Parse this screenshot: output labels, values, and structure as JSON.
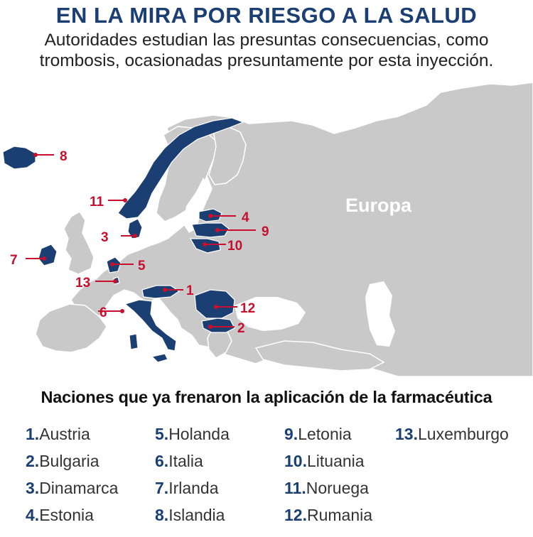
{
  "header": {
    "title": "EN LA MIRA POR RIESGO A LA SALUD",
    "subtitle_line1": "Autoridades estudian las presuntas consecuencias, como",
    "subtitle_line2": "trombosis, ocasionadas presuntamente por esta inyección."
  },
  "map": {
    "region_label": "Europa",
    "colors": {
      "highlight": "#1b3f73",
      "land": "#c9c9c9",
      "border": "#ffffff",
      "marker": "#c8102e"
    },
    "markers": [
      {
        "num": "1"
      },
      {
        "num": "2"
      },
      {
        "num": "3"
      },
      {
        "num": "4"
      },
      {
        "num": "5"
      },
      {
        "num": "6"
      },
      {
        "num": "7"
      },
      {
        "num": "8"
      },
      {
        "num": "9"
      },
      {
        "num": "10"
      },
      {
        "num": "11"
      },
      {
        "num": "12"
      },
      {
        "num": "13"
      }
    ]
  },
  "legend": {
    "title": "Naciones que ya frenaron la aplicación de la farmacéutica",
    "items": [
      {
        "num": "1.",
        "name": "Austria"
      },
      {
        "num": "2.",
        "name": "Bulgaria"
      },
      {
        "num": "3.",
        "name": "Dinamarca"
      },
      {
        "num": "4.",
        "name": "Estonia"
      },
      {
        "num": "5.",
        "name": "Holanda"
      },
      {
        "num": "6.",
        "name": "Italia"
      },
      {
        "num": "7.",
        "name": "Irlanda"
      },
      {
        "num": "8.",
        "name": "Islandia"
      },
      {
        "num": "9.",
        "name": "Letonia"
      },
      {
        "num": "10.",
        "name": "Lituania"
      },
      {
        "num": "11.",
        "name": "Noruega"
      },
      {
        "num": "12.",
        "name": "Rumania"
      },
      {
        "num": "13.",
        "name": "Luxemburgo"
      }
    ]
  }
}
